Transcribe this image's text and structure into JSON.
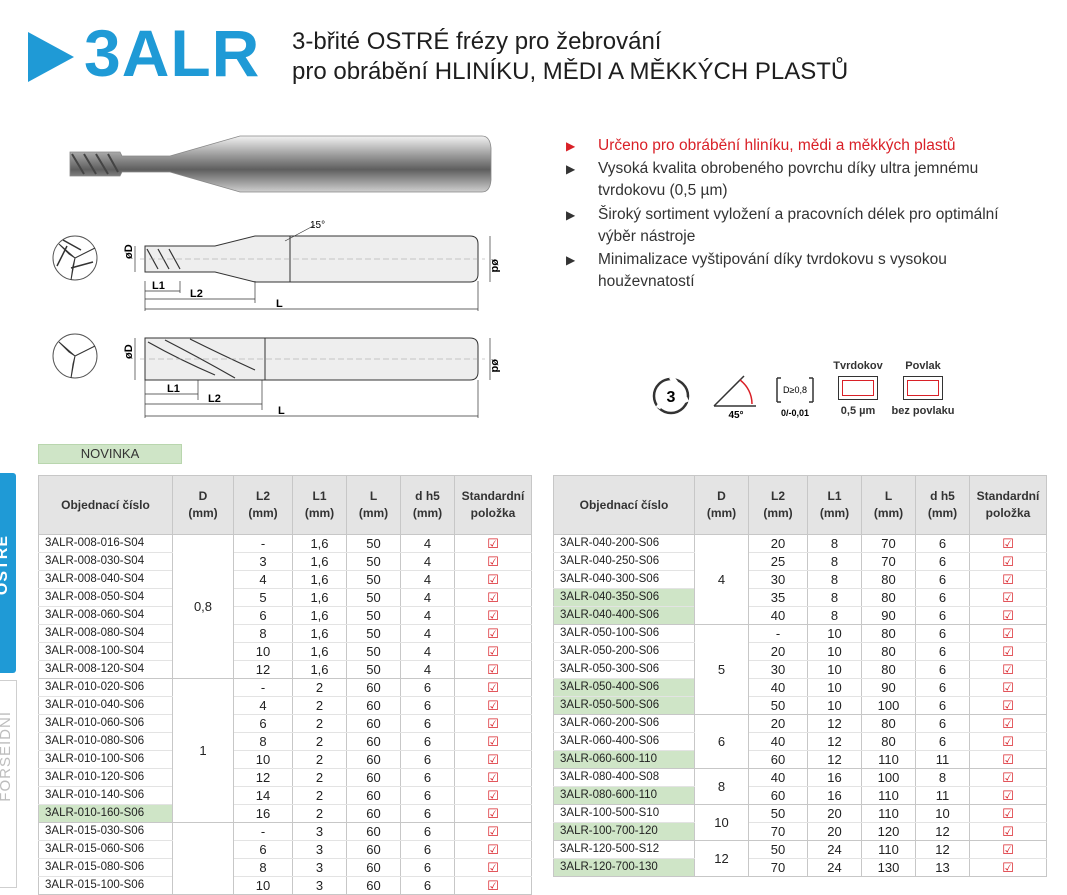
{
  "header": {
    "code": "3ALR",
    "line1": "3-břité OSTRÉ frézy pro žebrování",
    "line2": "pro obrábění HLINÍKU, MĚDI A MĚKKÝCH PLASTŮ"
  },
  "features": [
    "Určeno pro obrábění hliníku, mědi a měkkých plastů",
    "Vysoká kvalita obrobeného povrchu díky ultra jemnému tvrdokovu (0,5 µm)",
    "Široký sortiment vyložení a pracovních délek pro optimální výběr nástroje",
    "Minimalizace vyštipování díky tvrdokovu s vysokou houževnatostí"
  ],
  "colors": {
    "accent": "#1f9ad6",
    "red": "#d92027",
    "highlight": "#cfe5c7"
  },
  "drawing": {
    "angle": "15°",
    "d_big": "øD",
    "d_small": "ød",
    "l1": "L1",
    "l2": "L2",
    "l": "L"
  },
  "icons": {
    "flutes": "3",
    "angle": "45°",
    "d_tol_top": "D≥0,8",
    "d_tol_bottom": "0/-0,01",
    "tvrdokov_label": "Tvrdokov",
    "tvrdokov_value": "0,5 µm",
    "povlak_label": "Povlak",
    "povlak_value": "bez povlaku"
  },
  "sidetabs": {
    "tab1": "OSTRÉ",
    "tab2": "FORSEIDNÍ"
  },
  "novinka": "NOVINKA",
  "table_headers": [
    "Objednací číslo",
    "D\n(mm)",
    "L2\n(mm)",
    "L1\n(mm)",
    "L\n(mm)",
    "d h5\n(mm)",
    "Standardní\npoložka"
  ],
  "check_symbol": "☑",
  "left_table": [
    {
      "D": "0,8",
      "rows": [
        {
          "code": "3ALR-008-016-S04",
          "L2": "-",
          "L1": "1,6",
          "L": "50",
          "d": "4",
          "hl": false
        },
        {
          "code": "3ALR-008-030-S04",
          "L2": "3",
          "L1": "1,6",
          "L": "50",
          "d": "4",
          "hl": false
        },
        {
          "code": "3ALR-008-040-S04",
          "L2": "4",
          "L1": "1,6",
          "L": "50",
          "d": "4",
          "hl": false
        },
        {
          "code": "3ALR-008-050-S04",
          "L2": "5",
          "L1": "1,6",
          "L": "50",
          "d": "4",
          "hl": false
        },
        {
          "code": "3ALR-008-060-S04",
          "L2": "6",
          "L1": "1,6",
          "L": "50",
          "d": "4",
          "hl": false
        },
        {
          "code": "3ALR-008-080-S04",
          "L2": "8",
          "L1": "1,6",
          "L": "50",
          "d": "4",
          "hl": false
        },
        {
          "code": "3ALR-008-100-S04",
          "L2": "10",
          "L1": "1,6",
          "L": "50",
          "d": "4",
          "hl": false
        },
        {
          "code": "3ALR-008-120-S04",
          "L2": "12",
          "L1": "1,6",
          "L": "50",
          "d": "4",
          "hl": false
        }
      ]
    },
    {
      "D": "1",
      "rows": [
        {
          "code": "3ALR-010-020-S06",
          "L2": "-",
          "L1": "2",
          "L": "60",
          "d": "6",
          "hl": false
        },
        {
          "code": "3ALR-010-040-S06",
          "L2": "4",
          "L1": "2",
          "L": "60",
          "d": "6",
          "hl": false
        },
        {
          "code": "3ALR-010-060-S06",
          "L2": "6",
          "L1": "2",
          "L": "60",
          "d": "6",
          "hl": false
        },
        {
          "code": "3ALR-010-080-S06",
          "L2": "8",
          "L1": "2",
          "L": "60",
          "d": "6",
          "hl": false
        },
        {
          "code": "3ALR-010-100-S06",
          "L2": "10",
          "L1": "2",
          "L": "60",
          "d": "6",
          "hl": false
        },
        {
          "code": "3ALR-010-120-S06",
          "L2": "12",
          "L1": "2",
          "L": "60",
          "d": "6",
          "hl": false
        },
        {
          "code": "3ALR-010-140-S06",
          "L2": "14",
          "L1": "2",
          "L": "60",
          "d": "6",
          "hl": false
        },
        {
          "code": "3ALR-010-160-S06",
          "L2": "16",
          "L1": "2",
          "L": "60",
          "d": "6",
          "hl": true
        }
      ]
    },
    {
      "D": "",
      "rows": [
        {
          "code": "3ALR-015-030-S06",
          "L2": "-",
          "L1": "3",
          "L": "60",
          "d": "6",
          "hl": false
        },
        {
          "code": "3ALR-015-060-S06",
          "L2": "6",
          "L1": "3",
          "L": "60",
          "d": "6",
          "hl": false
        },
        {
          "code": "3ALR-015-080-S06",
          "L2": "8",
          "L1": "3",
          "L": "60",
          "d": "6",
          "hl": false
        },
        {
          "code": "3ALR-015-100-S06",
          "L2": "10",
          "L1": "3",
          "L": "60",
          "d": "6",
          "hl": false
        }
      ]
    }
  ],
  "right_table": [
    {
      "D": "4",
      "rows": [
        {
          "code": "3ALR-040-200-S06",
          "L2": "20",
          "L1": "8",
          "L": "70",
          "d": "6",
          "hl": false
        },
        {
          "code": "3ALR-040-250-S06",
          "L2": "25",
          "L1": "8",
          "L": "70",
          "d": "6",
          "hl": false
        },
        {
          "code": "3ALR-040-300-S06",
          "L2": "30",
          "L1": "8",
          "L": "80",
          "d": "6",
          "hl": false
        },
        {
          "code": "3ALR-040-350-S06",
          "L2": "35",
          "L1": "8",
          "L": "80",
          "d": "6",
          "hl": true
        },
        {
          "code": "3ALR-040-400-S06",
          "L2": "40",
          "L1": "8",
          "L": "90",
          "d": "6",
          "hl": true
        }
      ]
    },
    {
      "D": "5",
      "rows": [
        {
          "code": "3ALR-050-100-S06",
          "L2": "-",
          "L1": "10",
          "L": "80",
          "d": "6",
          "hl": false
        },
        {
          "code": "3ALR-050-200-S06",
          "L2": "20",
          "L1": "10",
          "L": "80",
          "d": "6",
          "hl": false
        },
        {
          "code": "3ALR-050-300-S06",
          "L2": "30",
          "L1": "10",
          "L": "80",
          "d": "6",
          "hl": false
        },
        {
          "code": "3ALR-050-400-S06",
          "L2": "40",
          "L1": "10",
          "L": "90",
          "d": "6",
          "hl": true
        },
        {
          "code": "3ALR-050-500-S06",
          "L2": "50",
          "L1": "10",
          "L": "100",
          "d": "6",
          "hl": true
        }
      ]
    },
    {
      "D": "6",
      "rows": [
        {
          "code": "3ALR-060-200-S06",
          "L2": "20",
          "L1": "12",
          "L": "80",
          "d": "6",
          "hl": false
        },
        {
          "code": "3ALR-060-400-S06",
          "L2": "40",
          "L1": "12",
          "L": "80",
          "d": "6",
          "hl": false
        },
        {
          "code": "3ALR-060-600-110",
          "L2": "60",
          "L1": "12",
          "L": "110",
          "d": "11",
          "hl": true
        }
      ]
    },
    {
      "D": "8",
      "rows": [
        {
          "code": "3ALR-080-400-S08",
          "L2": "40",
          "L1": "16",
          "L": "100",
          "d": "8",
          "hl": false
        },
        {
          "code": "3ALR-080-600-110",
          "L2": "60",
          "L1": "16",
          "L": "110",
          "d": "11",
          "hl": true
        }
      ]
    },
    {
      "D": "10",
      "rows": [
        {
          "code": "3ALR-100-500-S10",
          "L2": "50",
          "L1": "20",
          "L": "110",
          "d": "10",
          "hl": false
        },
        {
          "code": "3ALR-100-700-120",
          "L2": "70",
          "L1": "20",
          "L": "120",
          "d": "12",
          "hl": true
        }
      ]
    },
    {
      "D": "12",
      "rows": [
        {
          "code": "3ALR-120-500-S12",
          "L2": "50",
          "L1": "24",
          "L": "110",
          "d": "12",
          "hl": false
        },
        {
          "code": "3ALR-120-700-130",
          "L2": "70",
          "L1": "24",
          "L": "130",
          "d": "13",
          "hl": true
        }
      ]
    }
  ]
}
